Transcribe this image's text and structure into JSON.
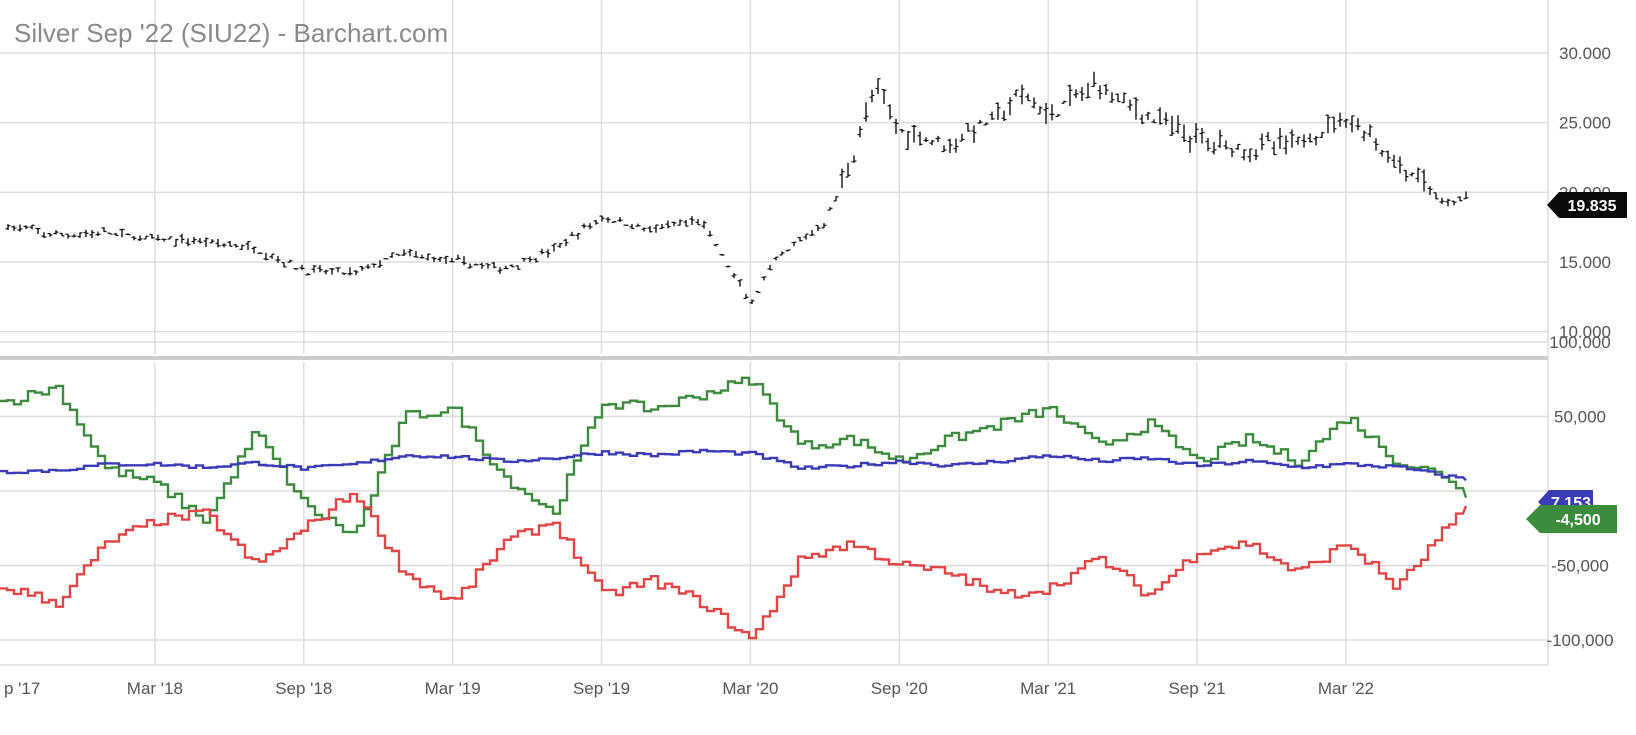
{
  "chart_data": [
    {
      "type": "ohlc",
      "title": "Silver Sep '22 (SIU22) - Barchart.com",
      "ylim": [
        10,
        32
      ],
      "y_ticks": [
        "30.000",
        "25.000",
        "20.000",
        "15.000",
        "10.000"
      ],
      "last_value_label": "19.835",
      "grid": true,
      "color": "#111111",
      "x": [
        "2017-09",
        "2017-11",
        "2018-01",
        "2018-03",
        "2018-05",
        "2018-07",
        "2018-09",
        "2018-11",
        "2019-01",
        "2019-03",
        "2019-05",
        "2019-07",
        "2019-09",
        "2019-11",
        "2020-01",
        "2020-03",
        "2020-04",
        "2020-05",
        "2020-06",
        "2020-07",
        "2020-08",
        "2020-09",
        "2020-11",
        "2021-01",
        "2021-02",
        "2021-03",
        "2021-05",
        "2021-07",
        "2021-09",
        "2021-11",
        "2022-01",
        "2022-03",
        "2022-04",
        "2022-05",
        "2022-06",
        "2022-07",
        "2022-08"
      ],
      "values": [
        17.6,
        16.9,
        17.1,
        16.6,
        16.5,
        16.0,
        14.4,
        14.2,
        15.6,
        15.1,
        14.5,
        15.8,
        18.2,
        17.3,
        18.0,
        12.0,
        15.0,
        16.5,
        17.8,
        22.0,
        27.5,
        24.5,
        23.5,
        25.5,
        27.0,
        25.5,
        27.8,
        25.5,
        23.8,
        23.2,
        23.5,
        25.5,
        24.0,
        22.0,
        21.0,
        19.0,
        19.835
      ]
    },
    {
      "type": "line",
      "ylim": [
        -110000,
        105000
      ],
      "y_ticks": [
        "100,000",
        "50,000",
        "-50,000",
        "-100,000"
      ],
      "x_ticks": [
        "p '17",
        "Mar '18",
        "Sep '18",
        "Mar '19",
        "Sep '19",
        "Mar '20",
        "Sep '20",
        "Mar '21",
        "Sep '21",
        "Mar '22"
      ],
      "grid": true,
      "x": [
        "2017-09",
        "2017-11",
        "2018-01",
        "2018-03",
        "2018-05",
        "2018-07",
        "2018-09",
        "2018-11",
        "2019-01",
        "2019-03",
        "2019-05",
        "2019-07",
        "2019-09",
        "2019-11",
        "2020-01",
        "2020-03",
        "2020-05",
        "2020-07",
        "2020-09",
        "2020-11",
        "2021-01",
        "2021-03",
        "2021-05",
        "2021-07",
        "2021-09",
        "2021-11",
        "2022-01",
        "2022-03",
        "2022-05",
        "2022-07",
        "2022-08"
      ],
      "series": [
        {
          "color": "#3d8b3d",
          "last_label": "-4,500",
          "values": [
            60000,
            70000,
            15000,
            5000,
            -20000,
            40000,
            -10000,
            -30000,
            50000,
            55000,
            10000,
            -15000,
            60000,
            55000,
            65000,
            75000,
            30000,
            35000,
            20000,
            35000,
            45000,
            55000,
            30000,
            45000,
            20000,
            35000,
            20000,
            50000,
            20000,
            10000,
            -4500
          ]
        },
        {
          "color": "#3b3bb5",
          "last_label": "7,153",
          "values": [
            13000,
            14000,
            18000,
            18000,
            16000,
            19000,
            15000,
            18000,
            24000,
            23000,
            20000,
            22000,
            26000,
            24000,
            27000,
            25000,
            15000,
            17000,
            20000,
            17000,
            20000,
            24000,
            20000,
            22000,
            17000,
            20000,
            16000,
            18000,
            16000,
            10000,
            7153
          ]
        },
        {
          "color": "#e04646",
          "last_label": "",
          "values": [
            -65000,
            -75000,
            -35000,
            -20000,
            -15000,
            -50000,
            -25000,
            0,
            -55000,
            -75000,
            -35000,
            -20000,
            -70000,
            -60000,
            -75000,
            -100000,
            -45000,
            -35000,
            -50000,
            -55000,
            -70000,
            -65000,
            -45000,
            -70000,
            -40000,
            -35000,
            -55000,
            -35000,
            -65000,
            -25000,
            -10000
          ]
        }
      ]
    }
  ]
}
